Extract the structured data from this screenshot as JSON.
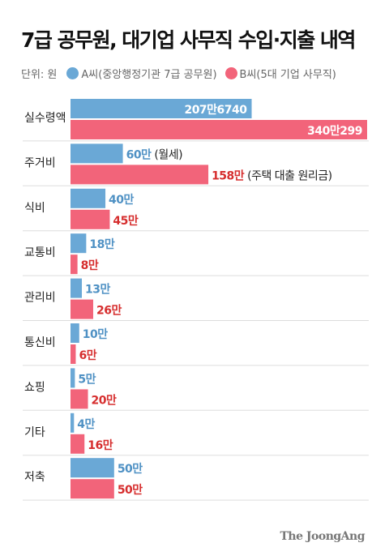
{
  "title": "7급 공무원, 대기업 사무직 수입·지출 내역",
  "legend": {
    "unit": "단위: 원",
    "series_a": "A씨(중앙행정기관 7급 공무원)",
    "series_b": "B씨(5대 기업 사무직)"
  },
  "colors": {
    "series_a": "#6aa8d6",
    "series_b": "#f2647a",
    "label_b": "#d62e2e",
    "label_a": "#4f91c4",
    "category": "#222222",
    "divider": "#dddddd"
  },
  "chart_data": {
    "type": "bar",
    "orientation": "horizontal",
    "title": "7급 공무원, 대기업 사무직 수입·지출 내역",
    "unit": "원",
    "categories": [
      "실수령액",
      "주거비",
      "식비",
      "교통비",
      "관리비",
      "통신비",
      "쇼핑",
      "기타",
      "저축"
    ],
    "series": [
      {
        "name": "A씨(중앙행정기관 7급 공무원)",
        "values": [
          2076740,
          600000,
          400000,
          180000,
          130000,
          100000,
          50000,
          40000,
          500000
        ],
        "labels": [
          "207만6740",
          "60만",
          "40만",
          "18만",
          "13만",
          "10만",
          "5만",
          "4만",
          "50만"
        ],
        "notes": [
          "",
          "(월세)",
          "",
          "",
          "",
          "",
          "",
          "",
          ""
        ]
      },
      {
        "name": "B씨(5대 기업 사무직)",
        "values": [
          3400299,
          1580000,
          450000,
          80000,
          260000,
          60000,
          200000,
          160000,
          500000
        ],
        "labels": [
          "340만299",
          "158만",
          "45만",
          "8만",
          "26만",
          "6만",
          "20만",
          "16만",
          "50만"
        ],
        "notes": [
          "",
          "(주택 대출 원리금)",
          "",
          "",
          "",
          "",
          "",
          "",
          ""
        ]
      }
    ],
    "xlim": [
      0,
      3400299
    ],
    "grid": false,
    "legend_position": "top-left"
  },
  "source": "The JoongAng"
}
